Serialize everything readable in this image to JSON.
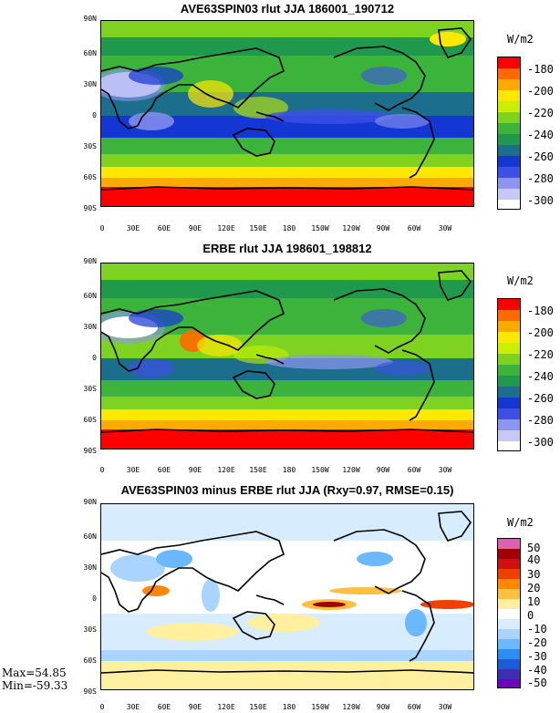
{
  "panels": [
    {
      "title": "AVE63SPIN03 rlut JJA 186001_190712",
      "unit": "W/m2",
      "colorbar_labels": [
        "-180",
        "-200",
        "-220",
        "-240",
        "-260",
        "-280",
        "-300"
      ]
    },
    {
      "title": "ERBE rlut JJA 198601_198812",
      "unit": "W/m2",
      "colorbar_labels": [
        "-180",
        "-200",
        "-220",
        "-240",
        "-260",
        "-280",
        "-300"
      ]
    },
    {
      "title": "AVE63SPIN03 minus ERBE rlut JJA (Rxy=0.97, RMSE=0.15)",
      "unit": "W/m2",
      "colorbar_labels": [
        "50",
        "40",
        "30",
        "20",
        "10",
        "0",
        "-10",
        "-20",
        "-30",
        "-40",
        "-50"
      ]
    }
  ],
  "lat_labels": [
    "90N",
    "60N",
    "30N",
    "0",
    "30S",
    "60S",
    "90S"
  ],
  "lon_labels": [
    "0",
    "30E",
    "60E",
    "90E",
    "120E",
    "150E",
    "180",
    "150W",
    "120W",
    "90W",
    "60W",
    "30W"
  ],
  "stats": {
    "max": "Max=54.85",
    "min": "Min=-59.33"
  },
  "colors": {
    "rlut_scale": [
      "#ff0000",
      "#ff6a00",
      "#ffaa00",
      "#ffe800",
      "#c8f000",
      "#7ed321",
      "#3cb43c",
      "#1f9a4c",
      "#1b6e8c",
      "#1436d2",
      "#3c50e6",
      "#8c96f0",
      "#c8c8f5",
      "#ffffff"
    ],
    "diff_scale": [
      "#e060b0",
      "#a00000",
      "#d01010",
      "#f04000",
      "#ff8800",
      "#ffc040",
      "#fff0a0",
      "#ffffff",
      "#d8ecff",
      "#a8d4ff",
      "#6cb8ff",
      "#2c8ef0",
      "#1c5cd8",
      "#3c30b0",
      "#7000c0"
    ]
  }
}
